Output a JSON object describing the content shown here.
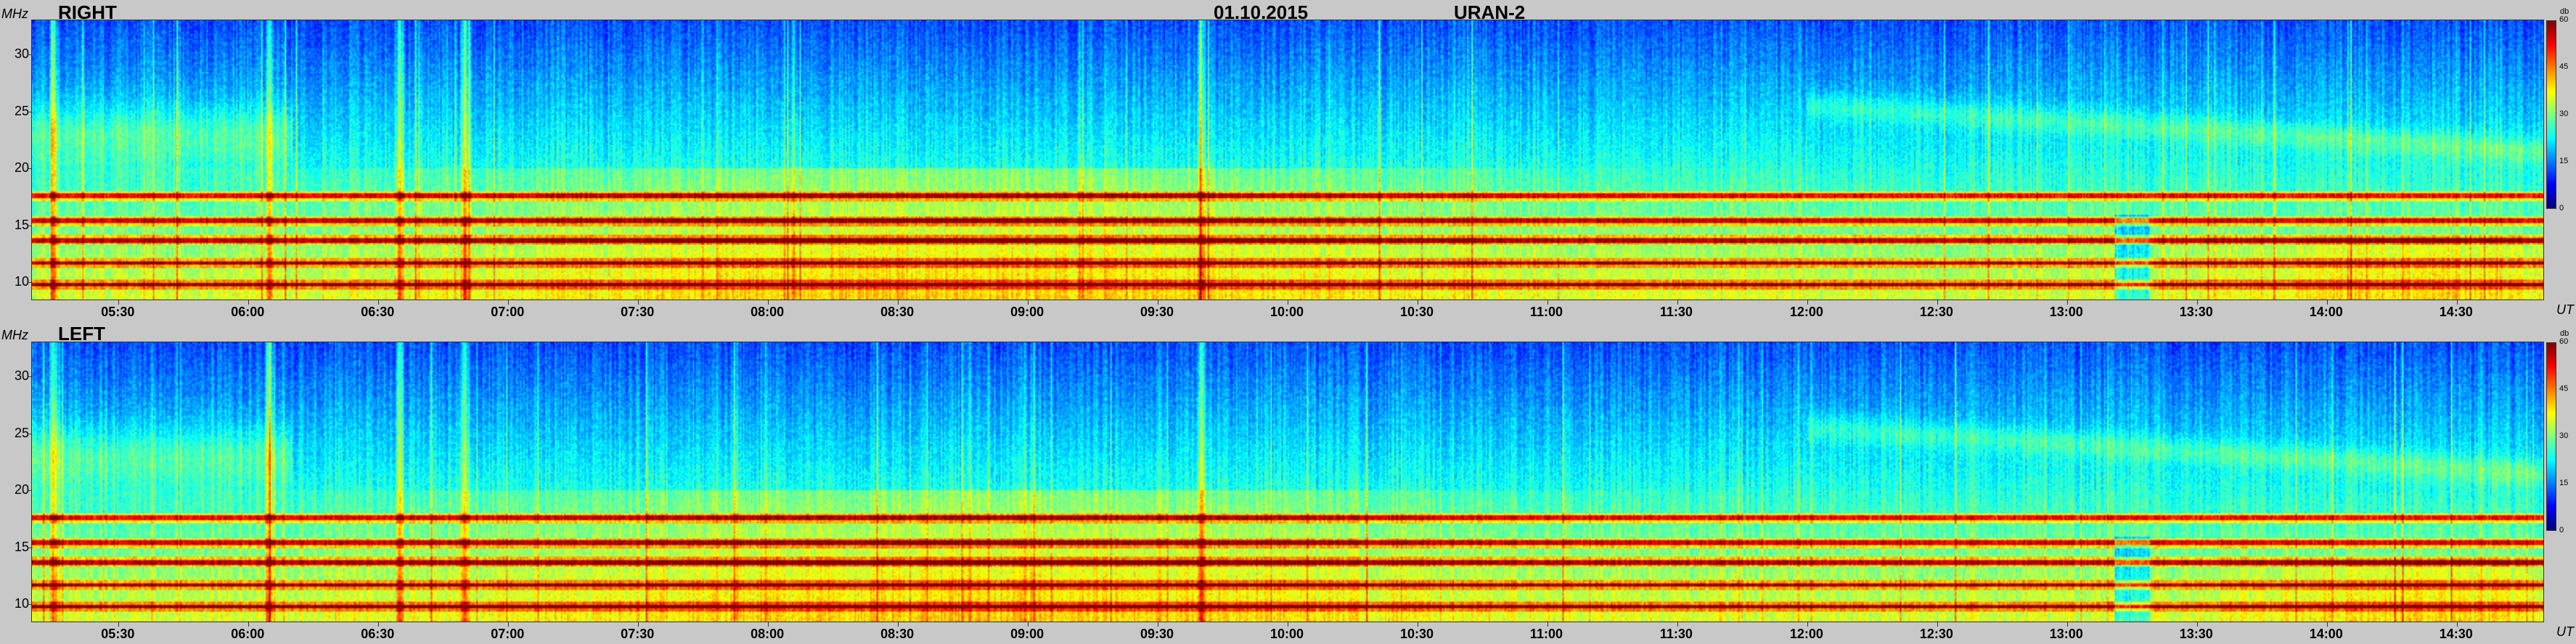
{
  "header": {
    "date": "01.10.2015",
    "station": "URAN-2"
  },
  "chart_data": {
    "type": "heatmap",
    "colormap": "jet",
    "time_axis": {
      "unit_label": "UT",
      "start": "05:10",
      "end": "14:50",
      "ticks": [
        "05:30",
        "06:00",
        "06:30",
        "07:00",
        "07:30",
        "08:00",
        "08:30",
        "09:00",
        "09:30",
        "10:00",
        "10:30",
        "11:00",
        "11:30",
        "12:00",
        "12:30",
        "13:00",
        "13:30",
        "14:00",
        "14:30"
      ]
    },
    "frequency_axis": {
      "unit_label": "MHz",
      "range": [
        8.5,
        33
      ],
      "ticks": [
        "10",
        "15",
        "20",
        "25",
        "30"
      ],
      "tick_values": [
        10,
        15,
        20,
        25,
        30
      ]
    },
    "colorbar": {
      "label": "db",
      "range": [
        0,
        60
      ],
      "ticks": [
        "60",
        "45",
        "30",
        "15",
        "0"
      ],
      "tick_values": [
        60,
        45,
        30,
        15,
        0
      ]
    },
    "panels": [
      {
        "name": "RIGHT"
      },
      {
        "name": "LEFT"
      }
    ],
    "features": {
      "interference_bands_mhz": [
        9.8,
        11.7,
        13.7,
        15.4,
        17.6
      ],
      "background_db_high_freq": 12,
      "background_db_low_freq": 35,
      "bright_bursts_times": [
        "05:15",
        "06:05",
        "06:35",
        "06:50",
        "09:40"
      ],
      "dip_time": "13:15"
    }
  }
}
